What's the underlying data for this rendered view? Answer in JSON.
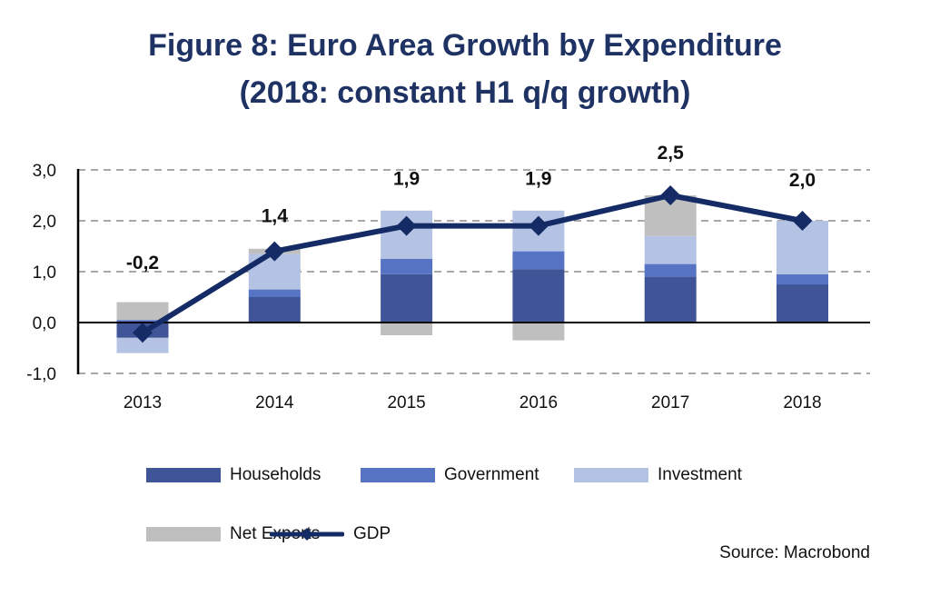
{
  "title_line1": "Figure 8: Euro Area Growth by Expenditure",
  "title_line2": "(2018: constant H1 q/q growth)",
  "source": "Source: Macrobond",
  "chart_data": {
    "type": "bar",
    "stacked": true,
    "title": "Figure 8: Euro Area Growth by Expenditure (2018: constant H1 q/q growth)",
    "xlabel": "",
    "ylabel": "",
    "categories": [
      "2013",
      "2014",
      "2015",
      "2016",
      "2017",
      "2018"
    ],
    "ylim": [
      -1.0,
      3.0
    ],
    "yticks": [
      -1.0,
      0.0,
      1.0,
      2.0,
      3.0
    ],
    "ytick_labels": [
      "-1,0",
      "0,0",
      "1,0",
      "2,0",
      "3,0"
    ],
    "grid": true,
    "legend_position": "bottom",
    "series": [
      {
        "name": "Households",
        "color": "#3f5597",
        "values": [
          -0.3,
          0.5,
          0.95,
          1.05,
          0.9,
          0.75
        ]
      },
      {
        "name": "Government",
        "color": "#5673c4",
        "values": [
          0.05,
          0.15,
          0.3,
          0.35,
          0.25,
          0.2
        ]
      },
      {
        "name": "Investment",
        "color": "#b4c3e3",
        "values": [
          -0.3,
          0.7,
          0.95,
          0.8,
          0.55,
          1.05
        ]
      },
      {
        "name": "Net Exports",
        "color": "#bfbfbf",
        "values": [
          0.35,
          0.1,
          -0.25,
          -0.35,
          0.8,
          0.0
        ]
      }
    ],
    "line_series": {
      "name": "GDP",
      "color": "#142b66",
      "marker": "diamond",
      "values": [
        -0.2,
        1.4,
        1.9,
        1.9,
        2.5,
        2.0
      ],
      "data_labels": [
        "-0,2",
        "1,4",
        "1,9",
        "1,9",
        "2,5",
        "2,0"
      ]
    }
  }
}
